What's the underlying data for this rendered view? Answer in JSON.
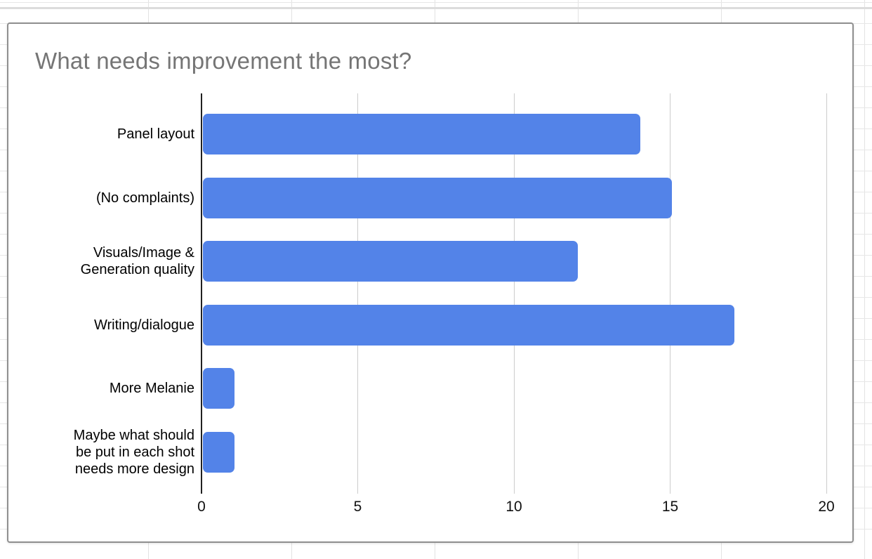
{
  "chart_data": {
    "type": "bar",
    "orientation": "horizontal",
    "title": "What needs improvement the most?",
    "categories": [
      "Panel layout",
      "(No complaints)",
      "Visuals/Image & Generation quality",
      "Writing/dialogue",
      "More Melanie",
      "Maybe what should be put in each shot needs more design"
    ],
    "categories_wrapped": [
      "Panel layout",
      "(No complaints)",
      "Visuals/Image &\nGeneration quality",
      "Writing/dialogue",
      "More Melanie",
      "Maybe what should\nbe put in each shot\nneeds more design"
    ],
    "values": [
      14,
      15,
      12,
      17,
      1,
      1
    ],
    "xlabel": "",
    "ylabel": "",
    "xlim": [
      0,
      20
    ],
    "x_ticks": [
      0,
      5,
      10,
      15,
      20
    ],
    "grid": true,
    "legend": "none",
    "style": {
      "bar_color": "#5383e8",
      "title_color": "#757575",
      "axis_color": "#212121",
      "gridline_color": "#cccccc",
      "tick_label_color": "#111111",
      "category_label_color": "#000000",
      "panel_border_color": "#8f8f8f",
      "sheet_gridline_color": "#e3e3e3"
    }
  }
}
